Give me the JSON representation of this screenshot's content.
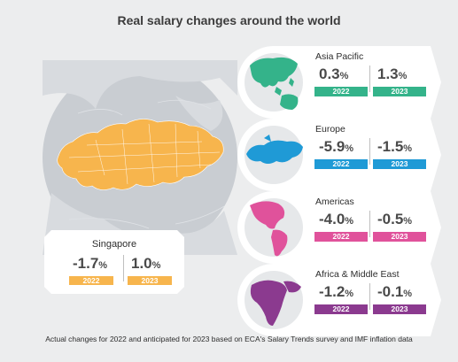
{
  "title": "Real salary changes around the world",
  "colors": {
    "background": "#ecedee",
    "asia_pacific": "#34b38a",
    "europe": "#1f9ad6",
    "americas": "#e0529b",
    "africa_me": "#8b3a8f",
    "singapore": "#f7b54d"
  },
  "singapore": {
    "name": "Singapore",
    "value_2022": "-1.7",
    "value_2023": "1.0",
    "pct": "%",
    "label_2022": "2022",
    "label_2023": "2023"
  },
  "regions": [
    {
      "name": "Asia Pacific",
      "value_2022": "0.3",
      "value_2023": "1.3",
      "pct": "%",
      "label_2022": "2022",
      "label_2023": "2023",
      "icon": "asia-pacific-map-icon"
    },
    {
      "name": "Europe",
      "value_2022": "-5.9",
      "value_2023": "-1.5",
      "pct": "%",
      "label_2022": "2022",
      "label_2023": "2023",
      "icon": "europe-map-icon"
    },
    {
      "name": "Americas",
      "value_2022": "-4.0",
      "value_2023": "-0.5",
      "pct": "%",
      "label_2022": "2022",
      "label_2023": "2023",
      "icon": "americas-map-icon"
    },
    {
      "name": "Africa & Middle East",
      "value_2022": "-1.2",
      "value_2023": "-0.1",
      "pct": "%",
      "label_2022": "2022",
      "label_2023": "2023",
      "icon": "africa-middle-east-map-icon"
    }
  ],
  "footnote": "Actual changes for 2022 and anticipated for 2023 based on ECA's Salary Trends survey and IMF inflation data"
}
